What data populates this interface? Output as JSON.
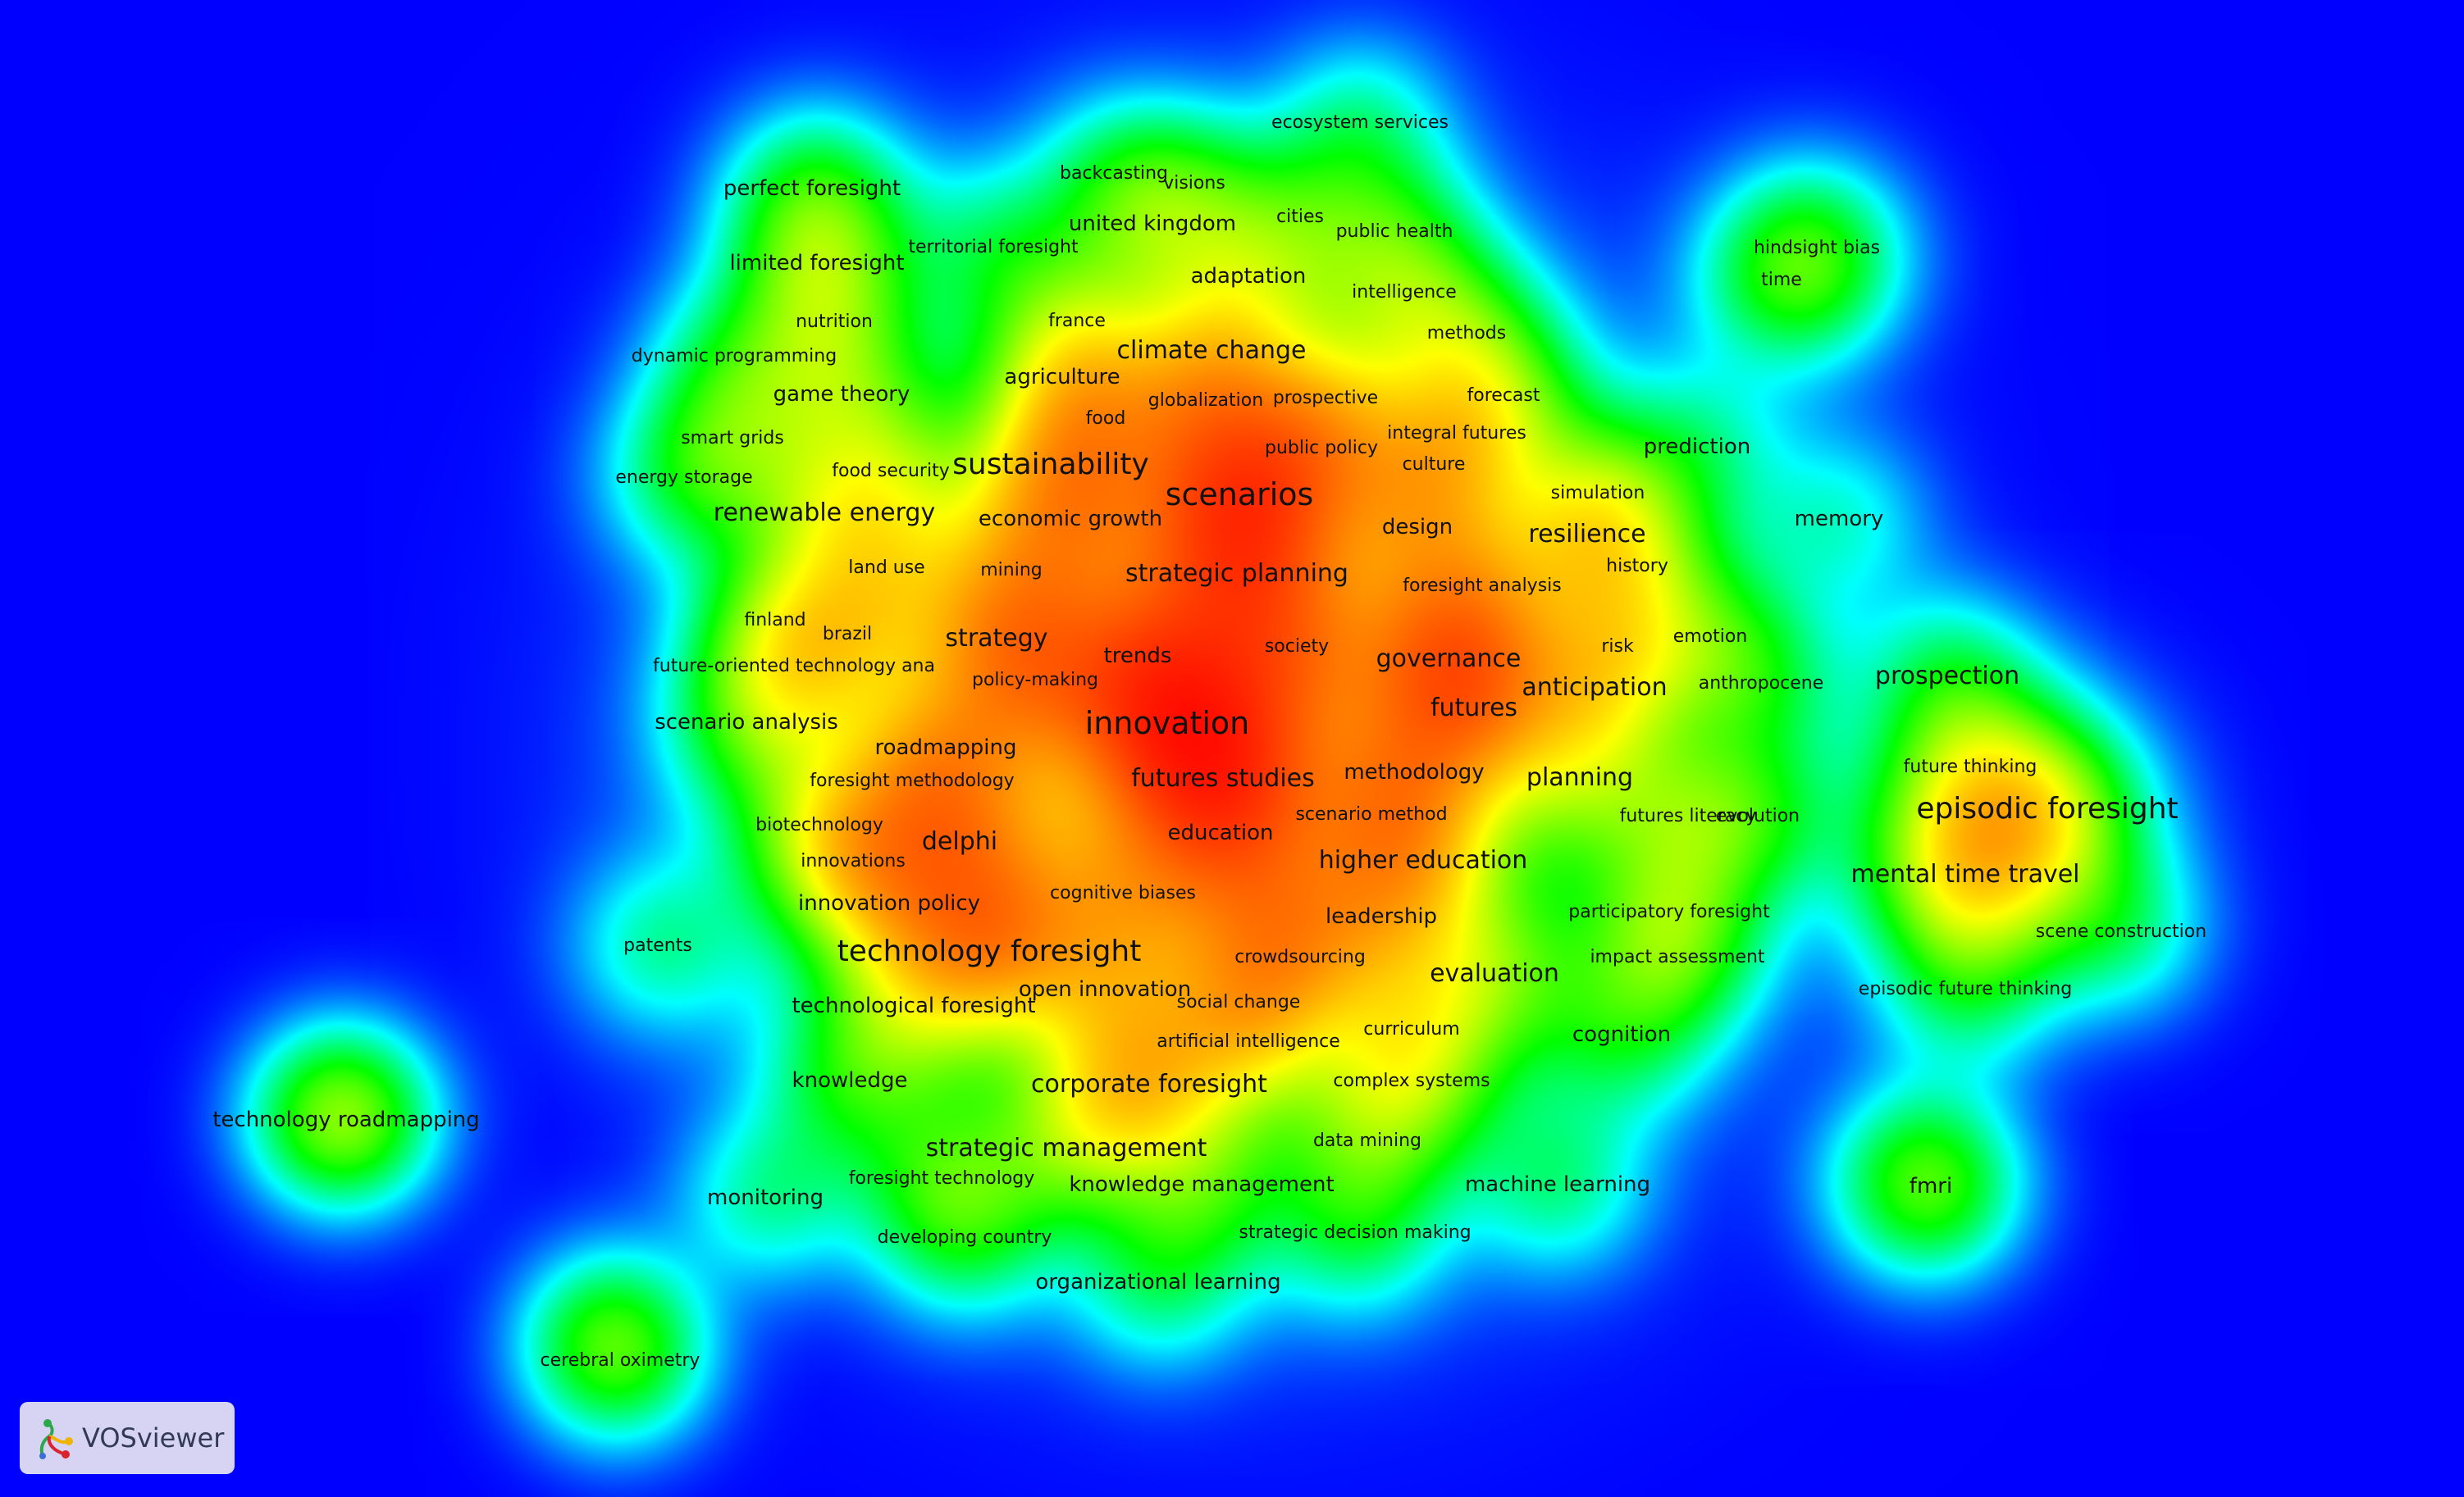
{
  "app": {
    "name": "VOSviewer",
    "logo_icon": "vosviewer-logo-icon"
  },
  "visualization": {
    "mode": "density",
    "background_color": "#0000ff",
    "color_scale": [
      "#0000ff",
      "#00ffff",
      "#00ff00",
      "#ffff00",
      "#ff0000"
    ]
  },
  "terms": [
    {
      "label": "ecosystem services",
      "w": 1,
      "d": 0
    },
    {
      "label": "backcasting",
      "w": 1,
      "d": 0.2
    },
    {
      "label": "visions",
      "w": 1,
      "d": 0.2
    },
    {
      "label": "perfect foresight",
      "w": 2,
      "d": 0.3
    },
    {
      "label": "united kingdom",
      "w": 2,
      "d": 0.3
    },
    {
      "label": "cities",
      "w": 1,
      "d": 0.25
    },
    {
      "label": "public health",
      "w": 1,
      "d": 0.25
    },
    {
      "label": "hindsight bias",
      "w": 1,
      "d": 0.25
    },
    {
      "label": "territorial foresight",
      "w": 1,
      "d": 0.3
    },
    {
      "label": "limited foresight",
      "w": 2,
      "d": 0.3
    },
    {
      "label": "time",
      "w": 1,
      "d": 0.25
    },
    {
      "label": "adaptation",
      "w": 2,
      "d": 0.45
    },
    {
      "label": "intelligence",
      "w": 1,
      "d": 0.4
    },
    {
      "label": "nutrition",
      "w": 1,
      "d": 0.35
    },
    {
      "label": "france",
      "w": 1,
      "d": 0.4
    },
    {
      "label": "methods",
      "w": 1,
      "d": 0.4
    },
    {
      "label": "climate change",
      "w": 3,
      "d": 0.6
    },
    {
      "label": "dynamic programming",
      "w": 1,
      "d": 0.35
    },
    {
      "label": "agriculture",
      "w": 2,
      "d": 0.55
    },
    {
      "label": "game theory",
      "w": 2,
      "d": 0.45
    },
    {
      "label": "globalization",
      "w": 1,
      "d": 0.55
    },
    {
      "label": "prospective",
      "w": 1,
      "d": 0.5
    },
    {
      "label": "forecast",
      "w": 1,
      "d": 0.4
    },
    {
      "label": "food",
      "w": 1,
      "d": 0.5
    },
    {
      "label": "integral futures",
      "w": 1,
      "d": 0.4
    },
    {
      "label": "smart grids",
      "w": 1,
      "d": 0.35
    },
    {
      "label": "public policy",
      "w": 1,
      "d": 0.5
    },
    {
      "label": "prediction",
      "w": 2,
      "d": 0.2
    },
    {
      "label": "culture",
      "w": 1,
      "d": 0.4
    },
    {
      "label": "sustainability",
      "w": 4,
      "d": 0.8
    },
    {
      "label": "food security",
      "w": 1,
      "d": 0.45
    },
    {
      "label": "energy storage",
      "w": 1,
      "d": 0.35
    },
    {
      "label": "scenarios",
      "w": 5,
      "d": 1
    },
    {
      "label": "simulation",
      "w": 1,
      "d": 0.4
    },
    {
      "label": "renewable energy",
      "w": 3,
      "d": 0.6
    },
    {
      "label": "economic growth",
      "w": 2,
      "d": 0.6
    },
    {
      "label": "memory",
      "w": 2,
      "d": 0.2
    },
    {
      "label": "design",
      "w": 2,
      "d": 0.5
    },
    {
      "label": "resilience",
      "w": 3,
      "d": 0.55
    },
    {
      "label": "land use",
      "w": 1,
      "d": 0.45
    },
    {
      "label": "mining",
      "w": 1,
      "d": 0.5
    },
    {
      "label": "history",
      "w": 1,
      "d": 0.4
    },
    {
      "label": "strategic planning",
      "w": 3,
      "d": 0.8
    },
    {
      "label": "foresight analysis",
      "w": 1,
      "d": 0.5
    },
    {
      "label": "finland",
      "w": 1,
      "d": 0.4
    },
    {
      "label": "brazil",
      "w": 1,
      "d": 0.4
    },
    {
      "label": "emotion",
      "w": 1,
      "d": 0.3
    },
    {
      "label": "strategy",
      "w": 3,
      "d": 0.7
    },
    {
      "label": "society",
      "w": 1,
      "d": 0.6
    },
    {
      "label": "risk",
      "w": 1,
      "d": 0.4
    },
    {
      "label": "trends",
      "w": 2,
      "d": 0.65
    },
    {
      "label": "governance",
      "w": 3,
      "d": 0.8
    },
    {
      "label": "future-oriented technology ana",
      "w": 1,
      "d": 0.45
    },
    {
      "label": "prospection",
      "w": 3,
      "d": 0.4
    },
    {
      "label": "policy-making",
      "w": 1,
      "d": 0.55
    },
    {
      "label": "anthropocene",
      "w": 1,
      "d": 0.3
    },
    {
      "label": "anticipation",
      "w": 3,
      "d": 0.6
    },
    {
      "label": "futures",
      "w": 3,
      "d": 0.75
    },
    {
      "label": "innovation",
      "w": 5,
      "d": 1
    },
    {
      "label": "scenario analysis",
      "w": 2,
      "d": 0.45
    },
    {
      "label": "roadmapping",
      "w": 2,
      "d": 0.55
    },
    {
      "label": "future thinking",
      "w": 1,
      "d": 0.4
    },
    {
      "label": "methodology",
      "w": 2,
      "d": 0.6
    },
    {
      "label": "planning",
      "w": 3,
      "d": 0.55
    },
    {
      "label": "futures studies",
      "w": 3,
      "d": 0.9
    },
    {
      "label": "foresight methodology",
      "w": 1,
      "d": 0.5
    },
    {
      "label": "episodic foresight",
      "w": 4,
      "d": 0.55
    },
    {
      "label": "scenario method",
      "w": 1,
      "d": 0.55
    },
    {
      "label": "futures literacy",
      "w": 1,
      "d": 0.45
    },
    {
      "label": "evolution",
      "w": 1,
      "d": 0.35
    },
    {
      "label": "biotechnology",
      "w": 1,
      "d": 0.5
    },
    {
      "label": "education",
      "w": 2,
      "d": 0.65
    },
    {
      "label": "delphi",
      "w": 3,
      "d": 0.7
    },
    {
      "label": "innovations",
      "w": 1,
      "d": 0.5
    },
    {
      "label": "higher education",
      "w": 3,
      "d": 0.55
    },
    {
      "label": "mental time travel",
      "w": 3,
      "d": 0.5
    },
    {
      "label": "cognitive biases",
      "w": 1,
      "d": 0.6
    },
    {
      "label": "innovation policy",
      "w": 2,
      "d": 0.55
    },
    {
      "label": "leadership",
      "w": 2,
      "d": 0.6
    },
    {
      "label": "participatory foresight",
      "w": 1,
      "d": 0.4
    },
    {
      "label": "scene construction",
      "w": 1,
      "d": 0.3
    },
    {
      "label": "patents",
      "w": 1,
      "d": 0.3
    },
    {
      "label": "technology foresight",
      "w": 4,
      "d": 0.85
    },
    {
      "label": "crowdsourcing",
      "w": 1,
      "d": 0.55
    },
    {
      "label": "impact assessment",
      "w": 1,
      "d": 0.4
    },
    {
      "label": "evaluation",
      "w": 3,
      "d": 0.55
    },
    {
      "label": "open innovation",
      "w": 2,
      "d": 0.55
    },
    {
      "label": "episodic future thinking",
      "w": 1,
      "d": 0.35
    },
    {
      "label": "social change",
      "w": 1,
      "d": 0.5
    },
    {
      "label": "technological foresight",
      "w": 2,
      "d": 0.55
    },
    {
      "label": "curriculum",
      "w": 1,
      "d": 0.45
    },
    {
      "label": "cognition",
      "w": 2,
      "d": 0.35
    },
    {
      "label": "artificial intelligence",
      "w": 1,
      "d": 0.5
    },
    {
      "label": "knowledge",
      "w": 2,
      "d": 0.45
    },
    {
      "label": "corporate foresight",
      "w": 3,
      "d": 0.7
    },
    {
      "label": "complex systems",
      "w": 1,
      "d": 0.45
    },
    {
      "label": "technology roadmapping",
      "w": 2,
      "d": 0.5
    },
    {
      "label": "data mining",
      "w": 1,
      "d": 0.4
    },
    {
      "label": "strategic management",
      "w": 3,
      "d": 0.55
    },
    {
      "label": "foresight technology",
      "w": 1,
      "d": 0.45
    },
    {
      "label": "knowledge management",
      "w": 2,
      "d": 0.5
    },
    {
      "label": "machine learning",
      "w": 2,
      "d": 0.35
    },
    {
      "label": "fmri",
      "w": 2,
      "d": 0.4
    },
    {
      "label": "monitoring",
      "w": 2,
      "d": 0.35
    },
    {
      "label": "strategic decision making",
      "w": 1,
      "d": 0.35
    },
    {
      "label": "developing country",
      "w": 1,
      "d": 0.35
    },
    {
      "label": "organizational learning",
      "w": 2,
      "d": 0.35
    },
    {
      "label": "cerebral oximetry",
      "w": 1,
      "d": 0.4
    }
  ]
}
